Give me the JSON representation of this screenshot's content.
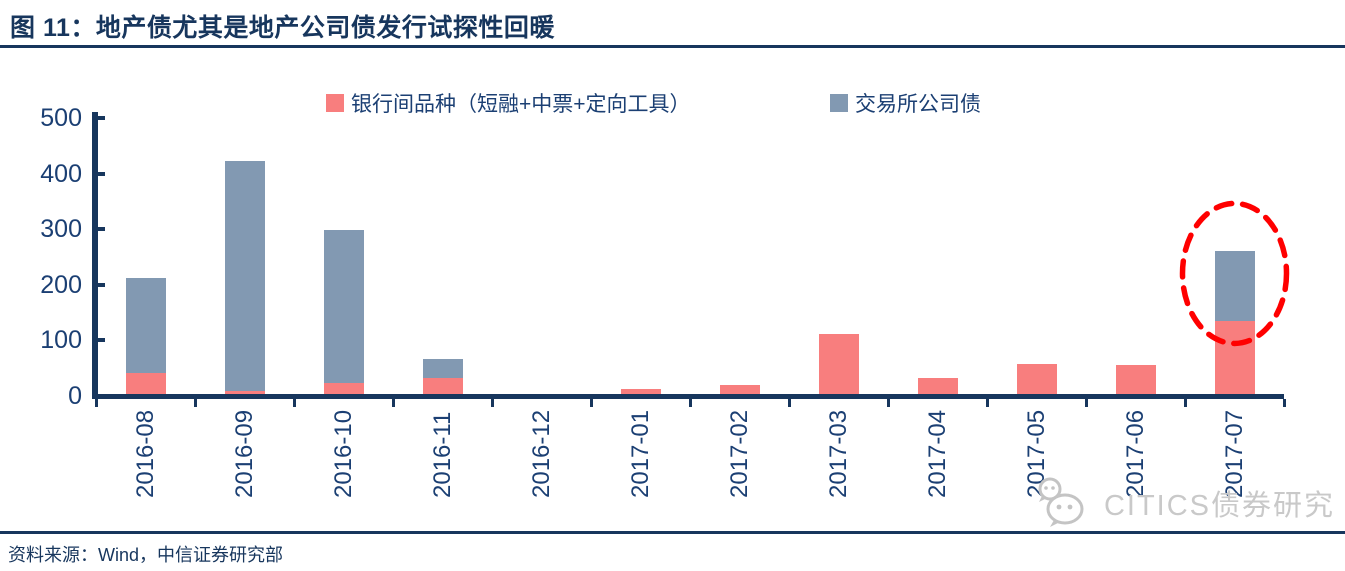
{
  "header": {
    "title": "图 11：地产债尤其是地产公司债发行试探性回暖"
  },
  "chart_data": {
    "type": "bar",
    "stacked": true,
    "title": "地产债尤其是地产公司债发行试探性回暖",
    "categories": [
      "2016-08",
      "2016-09",
      "2016-10",
      "2016-11",
      "2016-12",
      "2017-01",
      "2017-02",
      "2017-03",
      "2017-04",
      "2017-05",
      "2017-06",
      "2017-07"
    ],
    "series": [
      {
        "name": "银行间品种（短融+中票+定向工具）",
        "color": "#F87E7E",
        "values": [
          42,
          9,
          24,
          32,
          2,
          12,
          20,
          112,
          33,
          58,
          55,
          135
        ]
      },
      {
        "name": "交易所公司债",
        "color": "#8299B2",
        "values": [
          170,
          414,
          275,
          35,
          2,
          0,
          0,
          0,
          0,
          0,
          0,
          125
        ]
      }
    ],
    "xlabel": "",
    "ylabel": "",
    "ylim": [
      0,
      500
    ],
    "yticks": [
      0,
      100,
      200,
      300,
      400,
      500
    ],
    "grid": false,
    "legend_position": "top",
    "annotation": {
      "type": "dashed-ellipse",
      "target_category": "2017-07",
      "color": "#FF0000"
    }
  },
  "colors": {
    "navy": "#17365D",
    "axis_text": "#1B3F73",
    "watermark_gray": "#C9C9C9"
  },
  "watermark": {
    "icon": "wechat-icon",
    "text": "CITICS债券研究"
  },
  "footer": {
    "source": "资料来源：Wind，中信证券研究部"
  }
}
